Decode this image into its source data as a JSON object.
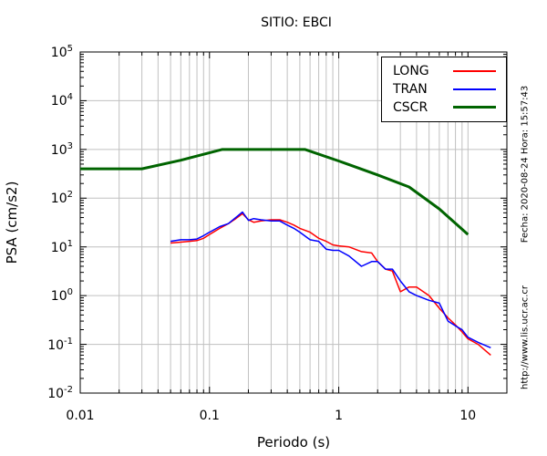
{
  "chart_data": {
    "type": "line",
    "title": "SITIO: EBCI",
    "xlabel": "Periodo (s)",
    "ylabel": "PSA (cm/s2)",
    "x_scale": "log",
    "y_scale": "log",
    "xlim": [
      0.01,
      20
    ],
    "ylim": [
      0.01,
      100000
    ],
    "grid": true,
    "legend_position": "top-right",
    "x_ticks": [
      {
        "value": 0.01,
        "label": "0.01"
      },
      {
        "value": 0.1,
        "label": "0.1"
      },
      {
        "value": 1,
        "label": "1"
      },
      {
        "value": 10,
        "label": "10"
      }
    ],
    "y_ticks": [
      {
        "value": 0.01,
        "base": "10",
        "exp": "-2"
      },
      {
        "value": 0.1,
        "base": "10",
        "exp": "-1"
      },
      {
        "value": 1,
        "base": "10",
        "exp": "0"
      },
      {
        "value": 10,
        "base": "10",
        "exp": "1"
      },
      {
        "value": 100,
        "base": "10",
        "exp": "2"
      },
      {
        "value": 1000,
        "base": "10",
        "exp": "3"
      },
      {
        "value": 10000,
        "base": "10",
        "exp": "4"
      },
      {
        "value": 100000,
        "base": "10",
        "exp": "5"
      }
    ],
    "series": [
      {
        "name": "LONG",
        "color": "#ff0000",
        "points": [
          [
            0.05,
            12
          ],
          [
            0.06,
            12.5
          ],
          [
            0.07,
            13
          ],
          [
            0.08,
            13.5
          ],
          [
            0.09,
            15
          ],
          [
            0.1,
            18
          ],
          [
            0.12,
            24
          ],
          [
            0.14,
            30
          ],
          [
            0.16,
            38
          ],
          [
            0.18,
            48
          ],
          [
            0.2,
            36
          ],
          [
            0.22,
            32
          ],
          [
            0.25,
            34
          ],
          [
            0.3,
            36
          ],
          [
            0.35,
            36
          ],
          [
            0.4,
            32
          ],
          [
            0.45,
            28
          ],
          [
            0.5,
            24
          ],
          [
            0.6,
            20
          ],
          [
            0.7,
            15
          ],
          [
            0.8,
            13
          ],
          [
            0.9,
            11
          ],
          [
            1.0,
            10.5
          ],
          [
            1.2,
            10
          ],
          [
            1.5,
            8
          ],
          [
            1.8,
            7.5
          ],
          [
            2.0,
            5
          ],
          [
            2.3,
            3.5
          ],
          [
            2.6,
            3.2
          ],
          [
            3.0,
            1.2
          ],
          [
            3.5,
            1.5
          ],
          [
            4.0,
            1.5
          ],
          [
            5.0,
            1.0
          ],
          [
            6.0,
            0.55
          ],
          [
            7.0,
            0.35
          ],
          [
            8.0,
            0.25
          ],
          [
            9.0,
            0.18
          ],
          [
            10.0,
            0.13
          ],
          [
            12.0,
            0.1
          ],
          [
            15.0,
            0.06
          ]
        ]
      },
      {
        "name": "TRAN",
        "color": "#0000ff",
        "points": [
          [
            0.05,
            13
          ],
          [
            0.06,
            14
          ],
          [
            0.07,
            14
          ],
          [
            0.08,
            14.5
          ],
          [
            0.09,
            17
          ],
          [
            0.1,
            20
          ],
          [
            0.12,
            26
          ],
          [
            0.14,
            30
          ],
          [
            0.16,
            40
          ],
          [
            0.18,
            52
          ],
          [
            0.2,
            35
          ],
          [
            0.22,
            38
          ],
          [
            0.25,
            36
          ],
          [
            0.3,
            34
          ],
          [
            0.35,
            34
          ],
          [
            0.4,
            28
          ],
          [
            0.45,
            24
          ],
          [
            0.5,
            20
          ],
          [
            0.6,
            14
          ],
          [
            0.7,
            13
          ],
          [
            0.8,
            9
          ],
          [
            0.9,
            8.5
          ],
          [
            1.0,
            8.5
          ],
          [
            1.2,
            6.5
          ],
          [
            1.5,
            4
          ],
          [
            1.8,
            5
          ],
          [
            2.0,
            5
          ],
          [
            2.3,
            3.5
          ],
          [
            2.6,
            3.5
          ],
          [
            3.0,
            2.0
          ],
          [
            3.5,
            1.2
          ],
          [
            4.0,
            1.0
          ],
          [
            5.0,
            0.8
          ],
          [
            6.0,
            0.7
          ],
          [
            7.0,
            0.3
          ],
          [
            8.0,
            0.24
          ],
          [
            9.0,
            0.2
          ],
          [
            10.0,
            0.14
          ],
          [
            12.0,
            0.11
          ],
          [
            15.0,
            0.085
          ]
        ]
      },
      {
        "name": "CSCR",
        "color": "#006400",
        "points": [
          [
            0.01,
            400
          ],
          [
            0.03,
            400
          ],
          [
            0.06,
            600
          ],
          [
            0.125,
            1000
          ],
          [
            0.55,
            1000
          ],
          [
            1.0,
            580
          ],
          [
            2.0,
            300
          ],
          [
            3.5,
            170
          ],
          [
            6.0,
            60
          ],
          [
            10.0,
            18
          ]
        ]
      }
    ]
  },
  "side_text": {
    "date": "Fecha: 2020-08-24 Hora: 15:57:43",
    "url": "http://www.lis.ucr.ac.cr"
  }
}
